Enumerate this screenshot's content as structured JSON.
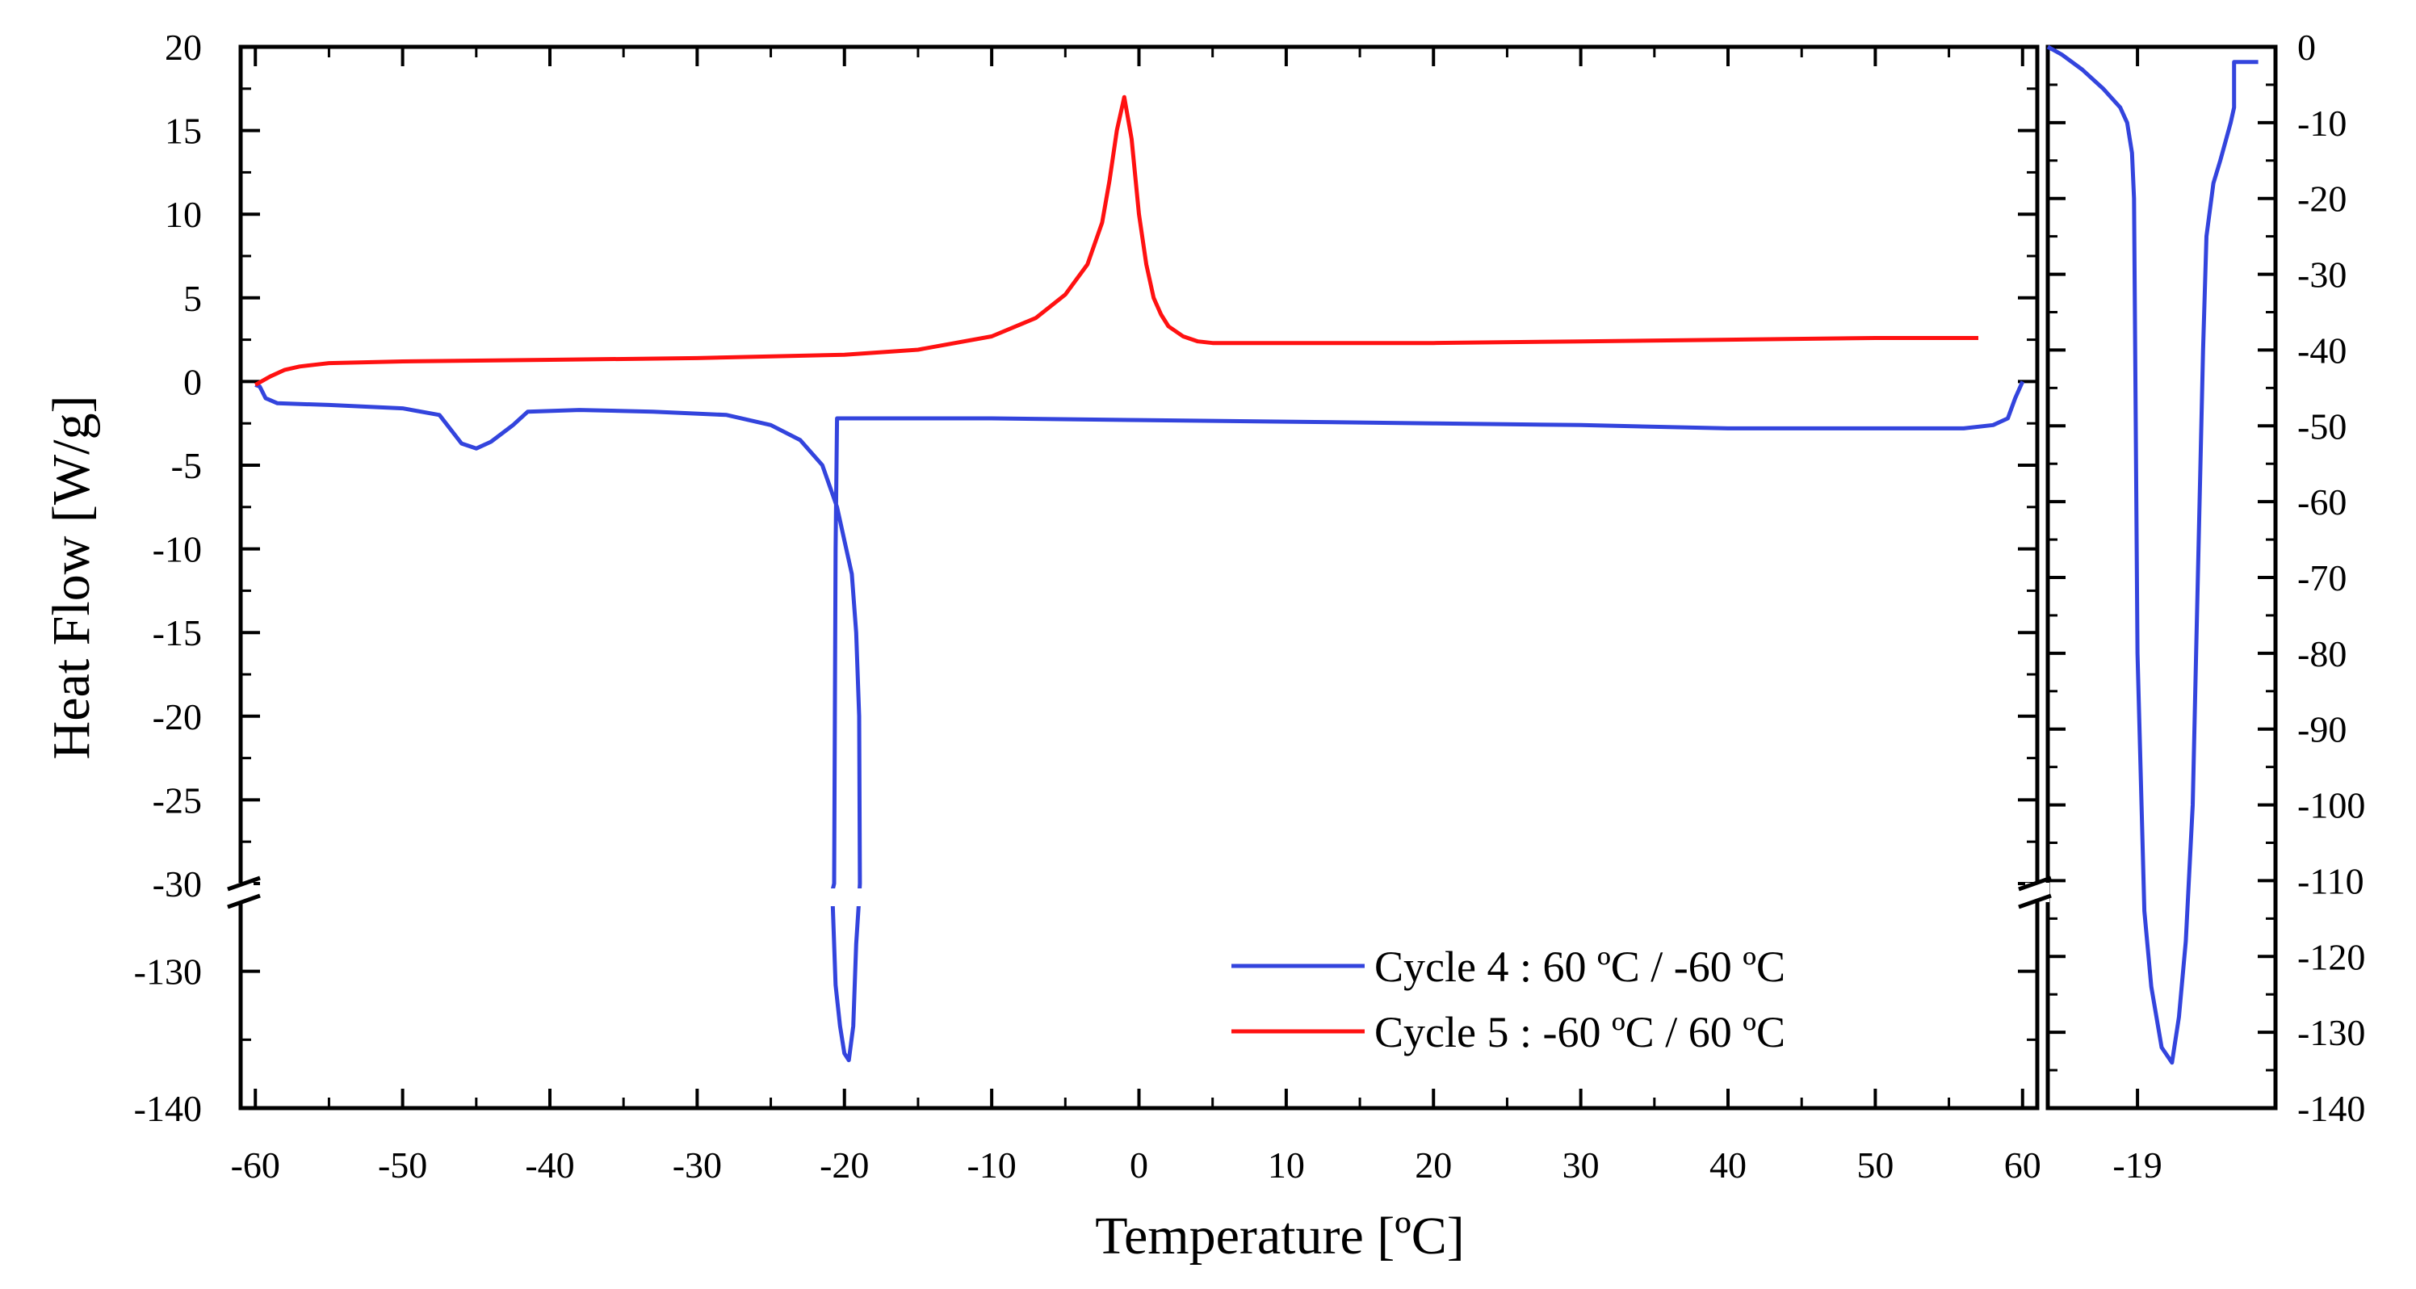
{
  "chart_data": {
    "type": "line",
    "xlabel": "Temperature [ºC]",
    "ylabel": "Heat Flow [W/g]",
    "x_ticks": [
      "-60",
      "-50",
      "-40",
      "-30",
      "-20",
      "-10",
      "0",
      "10",
      "20",
      "30",
      "40",
      "50",
      "60"
    ],
    "xlim": [
      -61,
      61
    ],
    "y_axis_break": {
      "upper_segment": {
        "range": [
          -30,
          20
        ],
        "ticks": [
          "20",
          "15",
          "10",
          "5",
          "0",
          "-5",
          "-10",
          "-15",
          "-20",
          "-25",
          "-30"
        ]
      },
      "lower_segment": {
        "range": [
          -140,
          -125
        ],
        "ticks": [
          "-130",
          "-140"
        ]
      }
    },
    "legend": {
      "position": "bottom-right"
    },
    "series": [
      {
        "name": "Cycle 4 :  60 ºC / -60 ºC",
        "color": "#3344dd",
        "x": [
          60.0,
          59.5,
          59.0,
          58.0,
          56.0,
          50.0,
          40.0,
          30.0,
          20.0,
          10.0,
          0.0,
          -10.0,
          -20.5,
          -20.6,
          -20.7,
          -20.8,
          -20.8,
          -20.8,
          -20.6,
          -20.3,
          -20.0,
          -19.7,
          -19.4,
          -19.2,
          -19.0,
          -18.95,
          -19.0,
          -19.2,
          -19.5,
          -20.0,
          -20.5,
          -21.5,
          -23.0,
          -25.0,
          -28.0,
          -33.0,
          -38.0,
          -41.5,
          -42.5,
          -44.0,
          -45.0,
          -46.0,
          -47.5,
          -50.0,
          -55.0,
          -58.5,
          -59.3,
          -59.7,
          -60.0
        ],
        "y": [
          0.0,
          -1.0,
          -2.2,
          -2.6,
          -2.8,
          -2.8,
          -2.8,
          -2.6,
          -2.5,
          -2.4,
          -2.3,
          -2.2,
          -2.2,
          -10.0,
          -30.0,
          -60.0,
          -100.0,
          -125.0,
          -131.0,
          -134.0,
          -136.0,
          -136.5,
          -134.0,
          -128.0,
          -100.0,
          -30.0,
          -20.0,
          -15.0,
          -11.5,
          -9.5,
          -7.5,
          -5.0,
          -3.5,
          -2.6,
          -2.0,
          -1.8,
          -1.7,
          -1.8,
          -2.6,
          -3.6,
          -4.0,
          -3.7,
          -2.0,
          -1.6,
          -1.4,
          -1.3,
          -1.0,
          -0.3,
          -0.2
        ]
      },
      {
        "name": "Cycle 5 : -60 ºC /  60 ºC",
        "color": "#ff1111",
        "x": [
          -60.0,
          -59.0,
          -58.0,
          -57.0,
          -56.0,
          -55.0,
          -50.0,
          -40.0,
          -30.0,
          -20.0,
          -15.0,
          -10.0,
          -7.0,
          -5.0,
          -3.5,
          -2.5,
          -2.0,
          -1.5,
          -1.0,
          -0.5,
          0.0,
          0.5,
          1.0,
          1.5,
          2.0,
          3.0,
          4.0,
          5.0,
          10.0,
          20.0,
          30.0,
          40.0,
          50.0,
          57.0
        ],
        "y": [
          -0.2,
          0.3,
          0.7,
          0.9,
          1.0,
          1.1,
          1.2,
          1.3,
          1.4,
          1.6,
          1.9,
          2.7,
          3.8,
          5.2,
          7.0,
          9.5,
          12.0,
          15.0,
          17.0,
          14.5,
          10.0,
          7.0,
          5.0,
          4.0,
          3.3,
          2.7,
          2.4,
          2.3,
          2.3,
          2.3,
          2.4,
          2.5,
          2.6,
          2.6
        ]
      }
    ],
    "inset": {
      "x_ticks": [
        "-19"
      ],
      "y_ticks": [
        "0",
        "-10",
        "-20",
        "-30",
        "-40",
        "-50",
        "-60",
        "-70",
        "-80",
        "-90",
        "-100",
        "-110",
        "-120",
        "-130",
        "-140"
      ],
      "ylim": [
        -140,
        0
      ],
      "xlim": [
        -21.0,
        -17.7
      ],
      "series": {
        "name": "Cycle 4 :  60 ºC / -60 ºC",
        "x": [
          -17.7,
          -17.9,
          -18.2,
          -18.5,
          -18.75,
          -18.85,
          -18.92,
          -18.95,
          -19.0,
          -19.1,
          -19.2,
          -19.35,
          -19.5,
          -19.6,
          -19.7,
          -19.8,
          -19.85,
          -19.9,
          -19.95,
          -20.0,
          -20.1,
          -20.2,
          -20.35,
          -20.4,
          -20.4,
          -20.5,
          -20.75
        ],
        "y": [
          0.0,
          -1.0,
          -3.0,
          -5.5,
          -8.0,
          -10.0,
          -14.0,
          -20.0,
          -80.0,
          -114.0,
          -124.0,
          -132.0,
          -134.0,
          -128.0,
          -118.0,
          -100.0,
          -80.0,
          -60.0,
          -40.0,
          -25.0,
          -18.0,
          -15.0,
          -10.0,
          -8.0,
          -2.0,
          -2.0,
          -2.0
        ]
      }
    }
  }
}
